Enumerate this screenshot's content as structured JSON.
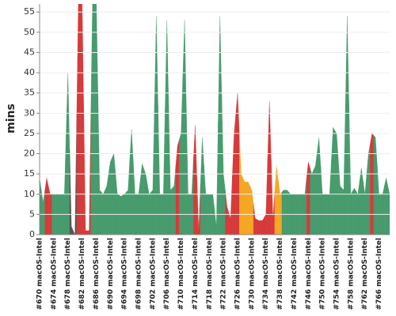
{
  "chart_data": {
    "type": "area",
    "y_label": "mins",
    "categories": [
      "#670 macOS-Intel",
      null,
      null,
      null,
      "#674 macOS-Intel",
      null,
      null,
      null,
      "#678 macOS-Intel",
      null,
      null,
      null,
      "#682 macOS-Intel",
      null,
      null,
      null,
      "#686 macOS-Intel",
      null,
      null,
      null,
      "#690 macOS-Intel",
      null,
      null,
      null,
      "#694 macOS-Intel",
      null,
      null,
      null,
      "#698 macOS-Intel",
      null,
      null,
      null,
      "#702 macOS-Intel",
      null,
      null,
      null,
      "#706 macOS-Intel",
      null,
      null,
      null,
      "#710 macOS-Intel",
      null,
      null,
      null,
      "#714 macOS-Intel",
      null,
      null,
      null,
      "#718 macOS-Intel",
      null,
      null,
      null,
      "#722 macOS-Intel",
      null,
      null,
      null,
      "#726 macOS-Intel",
      null,
      null,
      null,
      "#730 macOS-Intel",
      null,
      null,
      null,
      "#734 macOS-Intel",
      null,
      null,
      null,
      "#738 macOS-Intel",
      null,
      null,
      null,
      "#742 macOS-Intel",
      null,
      null,
      null,
      "#746 macOS-Intel",
      null,
      null,
      null,
      "#750 macOS-Intel",
      null,
      null,
      null,
      "#754 macOS-Intel",
      null,
      null,
      null,
      "#758 macOS-Intel",
      null,
      null,
      null,
      "#762 macOS-Intel",
      null,
      null,
      null,
      "#766 macOS-Intel",
      null,
      null,
      null
    ],
    "values": [
      14,
      8,
      14,
      10,
      10,
      10,
      10,
      10,
      40,
      2,
      0,
      60,
      60,
      1,
      1,
      60,
      60,
      11,
      10,
      12,
      18,
      20,
      10,
      9.5,
      10,
      11,
      26,
      10,
      10,
      17.5,
      15,
      10,
      11,
      54,
      10,
      10,
      53,
      11,
      12,
      22,
      25,
      53,
      10,
      10,
      27,
      1,
      24,
      10,
      10,
      10,
      2,
      54,
      15,
      7,
      4,
      25,
      35,
      15,
      13,
      13,
      11,
      4,
      3.5,
      3.5,
      5,
      33,
      4,
      17,
      10,
      11,
      11,
      10,
      10,
      10,
      10,
      10,
      18,
      15,
      17,
      24,
      10,
      10,
      10,
      26.5,
      25,
      12,
      11,
      54,
      10,
      11.5,
      10,
      16.5,
      10,
      20,
      25,
      24,
      10,
      10,
      14,
      10
    ],
    "colors": [
      "#479b6c",
      "#479b6c",
      "#d63a3a",
      "#d63a3a",
      "#479b6c",
      "#479b6c",
      "#479b6c",
      "#479b6c",
      "#479b6c",
      "#555555",
      "#555555",
      "#d63a3a",
      "#d63a3a",
      "#d63a3a",
      "#d63a3a",
      "#479b6c",
      "#479b6c",
      "#479b6c",
      "#479b6c",
      "#479b6c",
      "#479b6c",
      "#479b6c",
      "#479b6c",
      "#479b6c",
      "#479b6c",
      "#479b6c",
      "#479b6c",
      "#479b6c",
      "#479b6c",
      "#479b6c",
      "#479b6c",
      "#479b6c",
      "#479b6c",
      "#479b6c",
      "#479b6c",
      "#479b6c",
      "#479b6c",
      "#479b6c",
      "#479b6c",
      "#d63a3a",
      "#479b6c",
      "#479b6c",
      "#479b6c",
      "#479b6c",
      "#d63a3a",
      "#d63a3a",
      "#479b6c",
      "#479b6c",
      "#479b6c",
      "#479b6c",
      "#479b6c",
      "#479b6c",
      "#479b6c",
      "#d63a3a",
      "#d63a3a",
      "#d63a3a",
      "#d63a3a",
      "#f5a623",
      "#f5a623",
      "#f5a623",
      "#f5a623",
      "#d63a3a",
      "#d63a3a",
      "#d63a3a",
      "#d63a3a",
      "#d63a3a",
      "#d63a3a",
      "#f5a623",
      "#f5a623",
      "#479b6c",
      "#479b6c",
      "#479b6c",
      "#479b6c",
      "#479b6c",
      "#479b6c",
      "#479b6c",
      "#d63a3a",
      "#479b6c",
      "#479b6c",
      "#479b6c",
      "#479b6c",
      "#479b6c",
      "#479b6c",
      "#479b6c",
      "#479b6c",
      "#479b6c",
      "#479b6c",
      "#479b6c",
      "#479b6c",
      "#479b6c",
      "#479b6c",
      "#479b6c",
      "#479b6c",
      "#479b6c",
      "#d63a3a",
      "#479b6c",
      "#479b6c",
      "#479b6c",
      "#479b6c",
      "#479b6c"
    ],
    "ylim": [
      0,
      57
    ],
    "yticks": [
      0,
      5,
      10,
      15,
      20,
      25,
      30,
      35,
      40,
      45,
      50,
      55
    ],
    "grid": true
  }
}
